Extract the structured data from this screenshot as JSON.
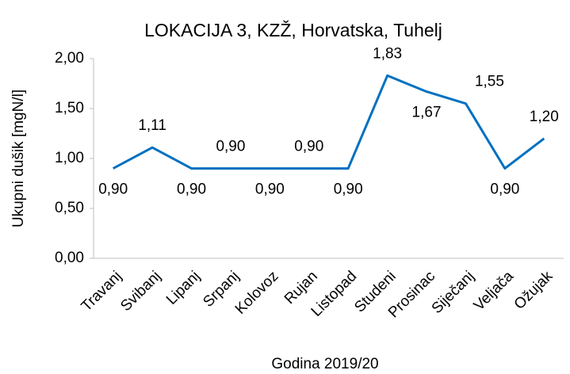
{
  "chart_data": {
    "type": "line",
    "title": "LOKACIJA 3, KZŽ, Horvatska, Tuhelj",
    "x_label": "Godina 2019/20",
    "y_label": "Ukupni dušik [mgN/l]",
    "categories": [
      "Travanj",
      "Svibanj",
      "Lipanj",
      "Srpanj",
      "Kolovoz",
      "Rujan",
      "Listopad",
      "Studeni",
      "Prosinac",
      "Siječanj",
      "Veljača",
      "Ožujak"
    ],
    "series": [
      {
        "name": "Ukupni dušik",
        "color": "#0070c0",
        "values": [
          0.9,
          1.11,
          0.9,
          0.9,
          0.9,
          0.9,
          0.9,
          1.83,
          1.67,
          1.55,
          0.9,
          1.2
        ],
        "value_labels": [
          "0,90",
          "1,11",
          "0,90",
          "0,90",
          "0,90",
          "0,90",
          "0,90",
          "1,83",
          "1,67",
          "1,55",
          "0,90",
          "1,20"
        ]
      }
    ],
    "ylim": [
      0,
      2
    ],
    "yticks": [
      {
        "value": 0,
        "label": "0,00"
      },
      {
        "value": 0.5,
        "label": "0,50"
      },
      {
        "value": 1,
        "label": "1,00"
      },
      {
        "value": 1.5,
        "label": "1,50"
      },
      {
        "value": 2,
        "label": "2,00"
      }
    ],
    "grid": false
  }
}
